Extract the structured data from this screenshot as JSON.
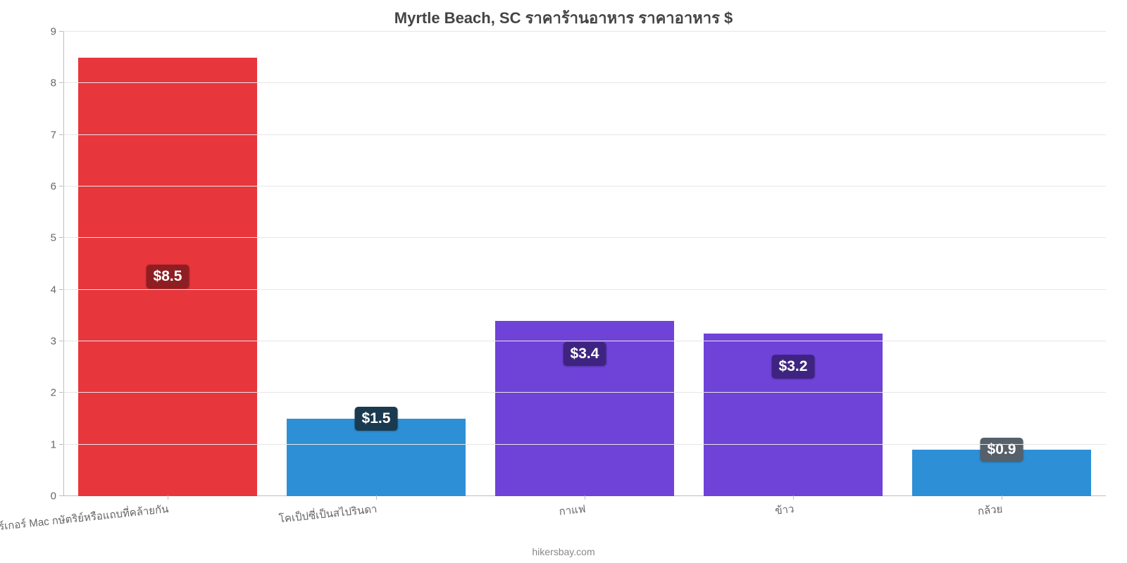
{
  "chart": {
    "type": "bar",
    "title": "Myrtle Beach, SC ราคาร้านอาหาร ราคาอาหาร $",
    "title_fontsize": 22,
    "title_color": "#444444",
    "caption": "hikersbay.com",
    "caption_fontsize": 14,
    "caption_color": "#888888",
    "background_color": "#ffffff",
    "grid_color": "#e6e6e6",
    "axis_color": "#bdbdbd",
    "tick_label_color": "#666666",
    "tick_fontsize": 15,
    "xlabel_fontsize": 15,
    "xlabel_rotation_deg": -6,
    "ylim": [
      0,
      9
    ],
    "ytick_step": 1,
    "yticks": [
      "0",
      "1",
      "2",
      "3",
      "4",
      "5",
      "6",
      "7",
      "8",
      "9"
    ],
    "bar_width_pct": 86,
    "badge_fontsize": 21,
    "bars": [
      {
        "label": "เบอร์เกอร์ Mac กษัตริย์หรือแถบที่คล้ายกัน",
        "value": 8.5,
        "display": "$8.5",
        "color": "#e7363c",
        "badge_bg": "#8f1e22",
        "badge_mode": "inside-center"
      },
      {
        "label": "โคเป็ปซี่เป็นสไปรินดา",
        "value": 1.5,
        "display": "$1.5",
        "color": "#2d8fd6",
        "badge_bg": "#1a3a4f",
        "badge_mode": "top-overlap"
      },
      {
        "label": "กาแฟ",
        "value": 3.4,
        "display": "$3.4",
        "color": "#6f42d8",
        "badge_bg": "#3e2480",
        "badge_mode": "inside-near-top"
      },
      {
        "label": "ข้าว",
        "value": 3.15,
        "display": "$3.2",
        "color": "#6f42d8",
        "badge_bg": "#3e2480",
        "badge_mode": "inside-near-top"
      },
      {
        "label": "กล้วย",
        "value": 0.9,
        "display": "$0.9",
        "color": "#2d8fd6",
        "badge_bg": "#55606a",
        "badge_mode": "top-overlap"
      }
    ]
  }
}
